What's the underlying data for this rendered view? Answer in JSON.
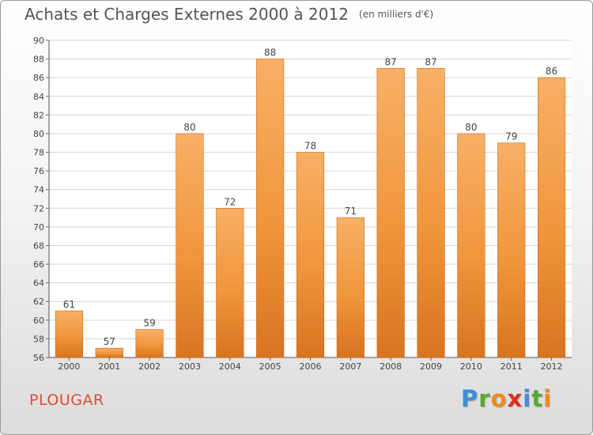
{
  "title": "Achats et Charges Externes 2000 à 2012",
  "unit_note": "(en milliers d'€)",
  "commune": "PLOUGAR",
  "logo": {
    "letters": [
      "P",
      "r",
      "o",
      "x",
      "i",
      "t",
      "i"
    ],
    "colors": [
      "#3b8fd8",
      "#5aa832",
      "#f08a1c",
      "#d8321f",
      "#3b8fd8",
      "#5aa832",
      "#f08a1c"
    ]
  },
  "colors": {
    "bar": "#f0963c",
    "bar_light": "#f8b066",
    "bar_dark": "#d97420",
    "grid": "#d6d6d6"
  },
  "chart_data": {
    "type": "bar",
    "title": "Achats et Charges Externes 2000 à 2012",
    "xlabel": "",
    "ylabel": "",
    "categories": [
      "2000",
      "2001",
      "2002",
      "2003",
      "2004",
      "2005",
      "2006",
      "2007",
      "2008",
      "2009",
      "2010",
      "2011",
      "2012"
    ],
    "values": [
      61,
      57,
      59,
      80,
      72,
      88,
      78,
      71,
      87,
      87,
      80,
      79,
      86
    ],
    "value_labels": [
      "61",
      "57",
      "59",
      "80",
      "72",
      "88",
      "78",
      "71",
      "87",
      "87",
      "80",
      "79",
      "86"
    ],
    "ylim": [
      56,
      90
    ],
    "yticks": [
      56,
      58,
      60,
      62,
      64,
      66,
      68,
      70,
      72,
      74,
      76,
      78,
      80,
      82,
      84,
      86,
      88,
      90
    ],
    "grid": true,
    "legend": "none"
  }
}
